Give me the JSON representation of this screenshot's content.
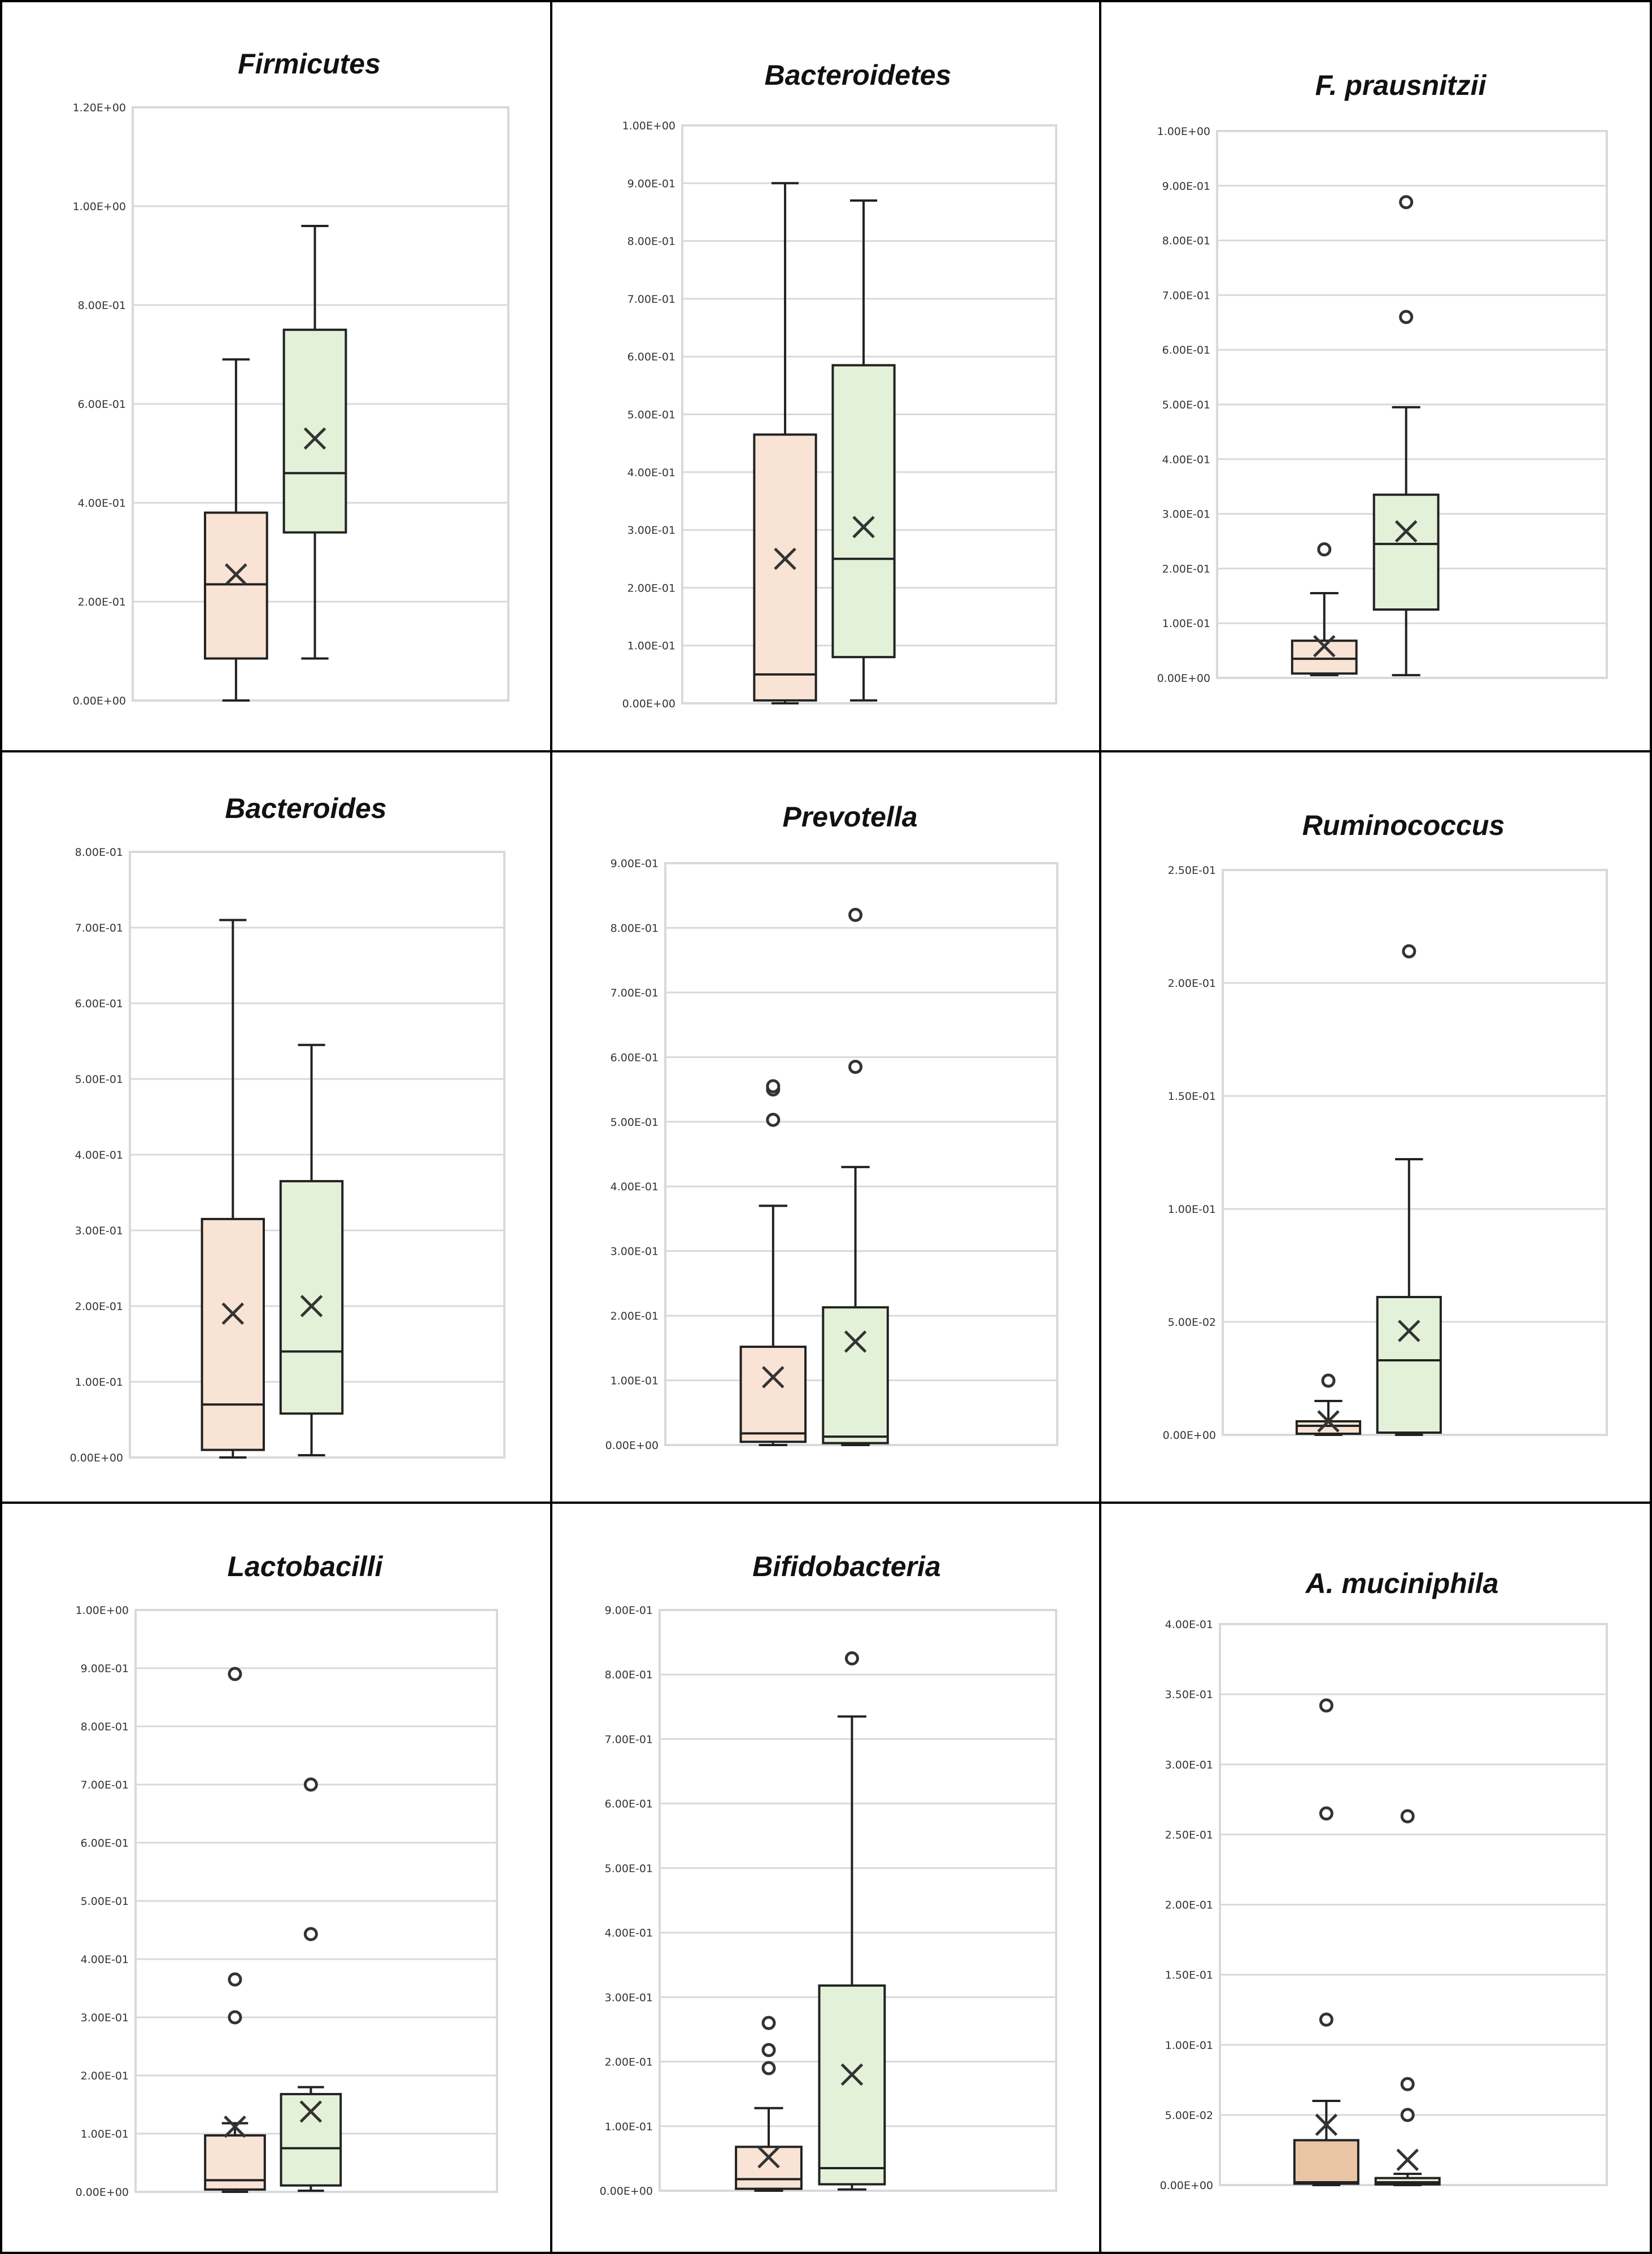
{
  "colors": {
    "group1_fill": "#f8e3d4",
    "group1_fill_strong": "#e9c5a6",
    "group2_fill": "#e3f1d8",
    "box_stroke": "#222222",
    "gridline": "#d9d9d9",
    "plot_border": "#d9d9d9",
    "panel_border": "#000000"
  },
  "chart_data": [
    {
      "type": "box",
      "title": "Firmicutes",
      "ylim": [
        0,
        1.2
      ],
      "yticks": [
        0,
        0.2,
        0.4,
        0.6,
        0.8,
        1.0,
        1.2
      ],
      "ytick_labels": [
        "0.00E+00",
        "2.00E-01",
        "4.00E-01",
        "6.00E-01",
        "8.00E-01",
        "1.00E+00",
        "1.20E+00"
      ],
      "boxes": [
        {
          "min": 0.0,
          "q1": 0.085,
          "median": 0.235,
          "q3": 0.38,
          "max": 0.69,
          "mean": 0.255,
          "outliers": []
        },
        {
          "min": 0.085,
          "q1": 0.34,
          "median": 0.46,
          "q3": 0.75,
          "max": 0.96,
          "mean": 0.53,
          "outliers": []
        }
      ]
    },
    {
      "type": "box",
      "title": "Bacteroidetes",
      "ylim": [
        0,
        1.0
      ],
      "yticks": [
        0,
        0.1,
        0.2,
        0.3,
        0.4,
        0.5,
        0.6,
        0.7,
        0.8,
        0.9,
        1.0
      ],
      "ytick_labels": [
        "0.00E+00",
        "1.00E-01",
        "2.00E-01",
        "3.00E-01",
        "4.00E-01",
        "5.00E-01",
        "6.00E-01",
        "7.00E-01",
        "8.00E-01",
        "9.00E-01",
        "1.00E+00"
      ],
      "boxes": [
        {
          "min": 0.0,
          "q1": 0.005,
          "median": 0.05,
          "q3": 0.465,
          "max": 0.9,
          "mean": 0.25,
          "outliers": []
        },
        {
          "min": 0.005,
          "q1": 0.08,
          "median": 0.25,
          "q3": 0.585,
          "max": 0.87,
          "mean": 0.305,
          "outliers": []
        }
      ]
    },
    {
      "type": "box",
      "title": "F. prausnitzii",
      "ylim": [
        0,
        1.0
      ],
      "yticks": [
        0,
        0.1,
        0.2,
        0.3,
        0.4,
        0.5,
        0.6,
        0.7,
        0.8,
        0.9,
        1.0
      ],
      "ytick_labels": [
        "0.00E+00",
        "1.00E-01",
        "2.00E-01",
        "3.00E-01",
        "4.00E-01",
        "5.00E-01",
        "6.00E-01",
        "7.00E-01",
        "8.00E-01",
        "9.00E-01",
        "1.00E+00"
      ],
      "boxes": [
        {
          "min": 0.005,
          "q1": 0.008,
          "median": 0.035,
          "q3": 0.068,
          "max": 0.155,
          "mean": 0.058,
          "outliers": [
            0.235
          ]
        },
        {
          "min": 0.005,
          "q1": 0.125,
          "median": 0.245,
          "q3": 0.335,
          "max": 0.495,
          "mean": 0.268,
          "outliers": [
            0.66,
            0.87
          ]
        }
      ]
    },
    {
      "type": "box",
      "title": "Bacteroides",
      "ylim": [
        0,
        0.8
      ],
      "yticks": [
        0,
        0.1,
        0.2,
        0.3,
        0.4,
        0.5,
        0.6,
        0.7,
        0.8
      ],
      "ytick_labels": [
        "0.00E+00",
        "1.00E-01",
        "2.00E-01",
        "3.00E-01",
        "4.00E-01",
        "5.00E-01",
        "6.00E-01",
        "7.00E-01",
        "8.00E-01"
      ],
      "boxes": [
        {
          "min": 0.0,
          "q1": 0.01,
          "median": 0.07,
          "q3": 0.315,
          "max": 0.71,
          "mean": 0.19,
          "outliers": []
        },
        {
          "min": 0.003,
          "q1": 0.058,
          "median": 0.14,
          "q3": 0.365,
          "max": 0.545,
          "mean": 0.2,
          "outliers": []
        }
      ]
    },
    {
      "type": "box",
      "title": "Prevotella",
      "ylim": [
        0,
        0.9
      ],
      "yticks": [
        0,
        0.1,
        0.2,
        0.3,
        0.4,
        0.5,
        0.6,
        0.7,
        0.8,
        0.9
      ],
      "ytick_labels": [
        "0.00E+00",
        "1.00E-01",
        "2.00E-01",
        "3.00E-01",
        "4.00E-01",
        "5.00E-01",
        "6.00E-01",
        "7.00E-01",
        "8.00E-01",
        "9.00E-01"
      ],
      "boxes": [
        {
          "min": 0.0,
          "q1": 0.005,
          "median": 0.018,
          "q3": 0.152,
          "max": 0.37,
          "mean": 0.105,
          "outliers": [
            0.503,
            0.55,
            0.555
          ]
        },
        {
          "min": 0.0,
          "q1": 0.003,
          "median": 0.013,
          "q3": 0.213,
          "max": 0.43,
          "mean": 0.16,
          "outliers": [
            0.585,
            0.82
          ]
        }
      ]
    },
    {
      "type": "box",
      "title": "Ruminococcus",
      "ylim": [
        0,
        0.25
      ],
      "yticks": [
        0,
        0.05,
        0.1,
        0.15,
        0.2,
        0.25
      ],
      "ytick_labels": [
        "0.00E+00",
        "5.00E-02",
        "1.00E-01",
        "1.50E-01",
        "2.00E-01",
        "2.50E-01"
      ],
      "boxes": [
        {
          "min": 0.0,
          "q1": 0.0005,
          "median": 0.004,
          "q3": 0.006,
          "max": 0.015,
          "mean": 0.006,
          "outliers": [
            0.024
          ]
        },
        {
          "min": 0.0,
          "q1": 0.001,
          "median": 0.033,
          "q3": 0.061,
          "max": 0.122,
          "mean": 0.046,
          "outliers": [
            0.214
          ]
        }
      ]
    },
    {
      "type": "box",
      "title": "Lactobacilli",
      "ylim": [
        0,
        1.0
      ],
      "yticks": [
        0,
        0.1,
        0.2,
        0.3,
        0.4,
        0.5,
        0.6,
        0.7,
        0.8,
        0.9,
        1.0
      ],
      "ytick_labels": [
        "0.00E+00",
        "1.00E-01",
        "2.00E-01",
        "3.00E-01",
        "4.00E-01",
        "5.00E-01",
        "6.00E-01",
        "7.00E-01",
        "8.00E-01",
        "9.00E-01",
        "1.00E+00"
      ],
      "boxes": [
        {
          "min": 0.0,
          "q1": 0.004,
          "median": 0.02,
          "q3": 0.097,
          "max": 0.118,
          "mean": 0.112,
          "outliers": [
            0.3,
            0.365,
            0.89
          ]
        },
        {
          "min": 0.002,
          "q1": 0.011,
          "median": 0.075,
          "q3": 0.168,
          "max": 0.18,
          "mean": 0.138,
          "outliers": [
            0.443,
            0.7
          ]
        }
      ]
    },
    {
      "type": "box",
      "title": "Bifidobacteria",
      "ylim": [
        0,
        0.9
      ],
      "yticks": [
        0,
        0.1,
        0.2,
        0.3,
        0.4,
        0.5,
        0.6,
        0.7,
        0.8,
        0.9
      ],
      "ytick_labels": [
        "0.00E+00",
        "1.00E-01",
        "2.00E-01",
        "3.00E-01",
        "4.00E-01",
        "5.00E-01",
        "6.00E-01",
        "7.00E-01",
        "8.00E-01",
        "9.00E-01"
      ],
      "boxes": [
        {
          "min": 0.0,
          "q1": 0.003,
          "median": 0.018,
          "q3": 0.068,
          "max": 0.128,
          "mean": 0.052,
          "outliers": [
            0.19,
            0.218,
            0.26
          ]
        },
        {
          "min": 0.002,
          "q1": 0.01,
          "median": 0.035,
          "q3": 0.318,
          "max": 0.735,
          "mean": 0.18,
          "outliers": [
            0.825
          ]
        }
      ]
    },
    {
      "type": "box",
      "title": "A. muciniphila",
      "ylim": [
        0,
        0.4
      ],
      "yticks": [
        0,
        0.05,
        0.1,
        0.15,
        0.2,
        0.25,
        0.3,
        0.35,
        0.4
      ],
      "ytick_labels": [
        "0.00E+00",
        "5.00E-02",
        "1.00E-01",
        "1.50E-01",
        "2.00E-01",
        "2.50E-01",
        "3.00E-01",
        "3.50E-01",
        "4.00E-01"
      ],
      "boxes": [
        {
          "min": 0.0,
          "q1": 0.001,
          "median": 0.002,
          "q3": 0.032,
          "max": 0.06,
          "mean": 0.043,
          "outliers": [
            0.118,
            0.265,
            0.342
          ]
        },
        {
          "min": 0.0,
          "q1": 0.0005,
          "median": 0.002,
          "q3": 0.005,
          "max": 0.008,
          "mean": 0.018,
          "outliers": [
            0.05,
            0.072,
            0.263
          ]
        }
      ]
    }
  ]
}
